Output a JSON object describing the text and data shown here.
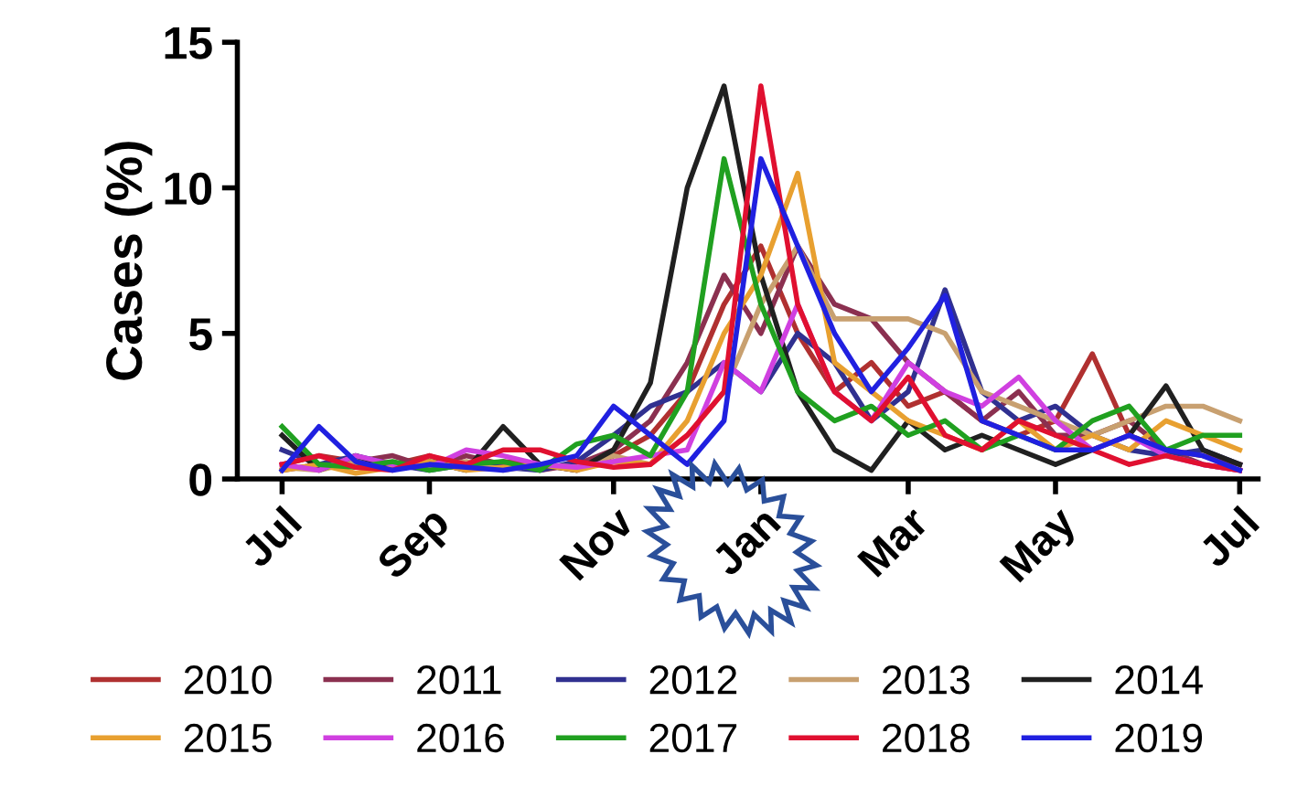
{
  "chart_data": {
    "type": "line",
    "ylabel": "Cases (%)",
    "categories": [
      "Jul",
      null,
      null,
      null,
      "Sep",
      null,
      null,
      null,
      null,
      "Nov",
      null,
      null,
      null,
      "Jan",
      null,
      null,
      null,
      "Mar",
      null,
      null,
      null,
      "May",
      null,
      null,
      null,
      null,
      "Jul"
    ],
    "ylim": [
      0,
      15
    ],
    "yticks": [
      0,
      5,
      10,
      15
    ],
    "grid": false,
    "legend": "bottom",
    "marker": "none",
    "line_style": "solid",
    "series": [
      {
        "name": "2010",
        "color": "#b03030",
        "values": [
          0.5,
          0.8,
          0.6,
          0.5,
          0.8,
          0.4,
          0.6,
          0.5,
          0.3,
          0.8,
          1.5,
          3,
          6,
          8,
          5,
          3,
          4,
          2.5,
          3,
          2,
          1.5,
          2,
          4.3,
          1.5,
          1,
          0.8,
          0.5
        ]
      },
      {
        "name": "2011",
        "color": "#8b3050",
        "values": [
          0.3,
          0.5,
          0.6,
          0.8,
          0.4,
          0.8,
          0.5,
          0.3,
          0.5,
          1,
          2,
          4,
          7,
          5,
          8,
          6,
          5.5,
          4,
          3,
          2,
          3,
          1.5,
          1.5,
          2,
          1,
          0.5,
          0.3
        ]
      },
      {
        "name": "2012",
        "color": "#303090",
        "values": [
          1,
          0.5,
          0.8,
          0.5,
          0.3,
          0.5,
          0.4,
          0.3,
          0.6,
          1.5,
          2.5,
          3,
          4,
          3,
          5,
          4,
          2,
          3,
          6.5,
          3,
          2,
          2.5,
          1.5,
          1,
          0.8,
          1,
          0.5
        ]
      },
      {
        "name": "2013",
        "color": "#c8a070",
        "values": [
          0.4,
          0.3,
          0.6,
          0.5,
          0.4,
          0.6,
          0.3,
          0.5,
          0.4,
          0.8,
          0.5,
          1.5,
          3,
          6,
          8,
          5.5,
          5.5,
          5.5,
          5,
          3,
          2.5,
          2,
          1.5,
          2,
          2.5,
          2.5,
          2
        ]
      },
      {
        "name": "2014",
        "color": "#202020",
        "values": [
          1.5,
          0.3,
          0.8,
          0.4,
          0.6,
          0.3,
          1.8,
          0.5,
          0.3,
          1,
          3.3,
          10,
          13.5,
          7,
          3,
          1,
          0.3,
          2,
          1,
          1.5,
          1,
          0.5,
          1,
          1.5,
          3.2,
          1,
          0.5
        ]
      },
      {
        "name": "2015",
        "color": "#e8a030",
        "values": [
          0.3,
          0.5,
          0.2,
          0.4,
          0.6,
          0.3,
          0.4,
          0.5,
          0.3,
          0.6,
          0.5,
          2,
          5,
          7,
          10.5,
          4,
          3,
          2,
          1.5,
          1,
          2,
          1,
          1.5,
          1,
          2,
          1.5,
          1
        ]
      },
      {
        "name": "2016",
        "color": "#d040e0",
        "values": [
          0.5,
          0.3,
          0.8,
          0.5,
          0.4,
          1,
          0.8,
          0.5,
          0.4,
          0.6,
          0.8,
          1,
          4,
          3,
          6,
          3,
          2,
          4,
          3,
          2.5,
          3.5,
          2,
          1,
          1.5,
          0.8,
          0.5,
          0.3
        ]
      },
      {
        "name": "2017",
        "color": "#20a020",
        "values": [
          1.8,
          0.5,
          0.4,
          0.6,
          0.3,
          0.5,
          0.6,
          0.3,
          1.2,
          1.5,
          0.8,
          3,
          11,
          6,
          3,
          2,
          2.5,
          1.5,
          2,
          1,
          1.5,
          1,
          2,
          2.5,
          1,
          1.5,
          1.5
        ]
      },
      {
        "name": "2018",
        "color": "#e01030",
        "values": [
          0.5,
          0.8,
          0.4,
          0.3,
          0.8,
          0.5,
          1,
          1,
          0.6,
          0.4,
          0.5,
          1.5,
          3,
          13.5,
          6,
          3,
          2,
          3.5,
          1.5,
          1,
          2,
          1.5,
          1,
          0.5,
          0.8,
          0.5,
          0.3
        ]
      },
      {
        "name": "2019",
        "color": "#2020e0",
        "values": [
          0.3,
          1.8,
          0.6,
          0.3,
          0.5,
          0.4,
          0.3,
          0.5,
          0.8,
          2.5,
          1.5,
          0.5,
          2,
          11,
          8,
          5,
          3,
          4.5,
          6.3,
          2,
          1.5,
          1,
          1,
          1.5,
          1,
          0.8,
          0.3
        ]
      }
    ]
  }
}
